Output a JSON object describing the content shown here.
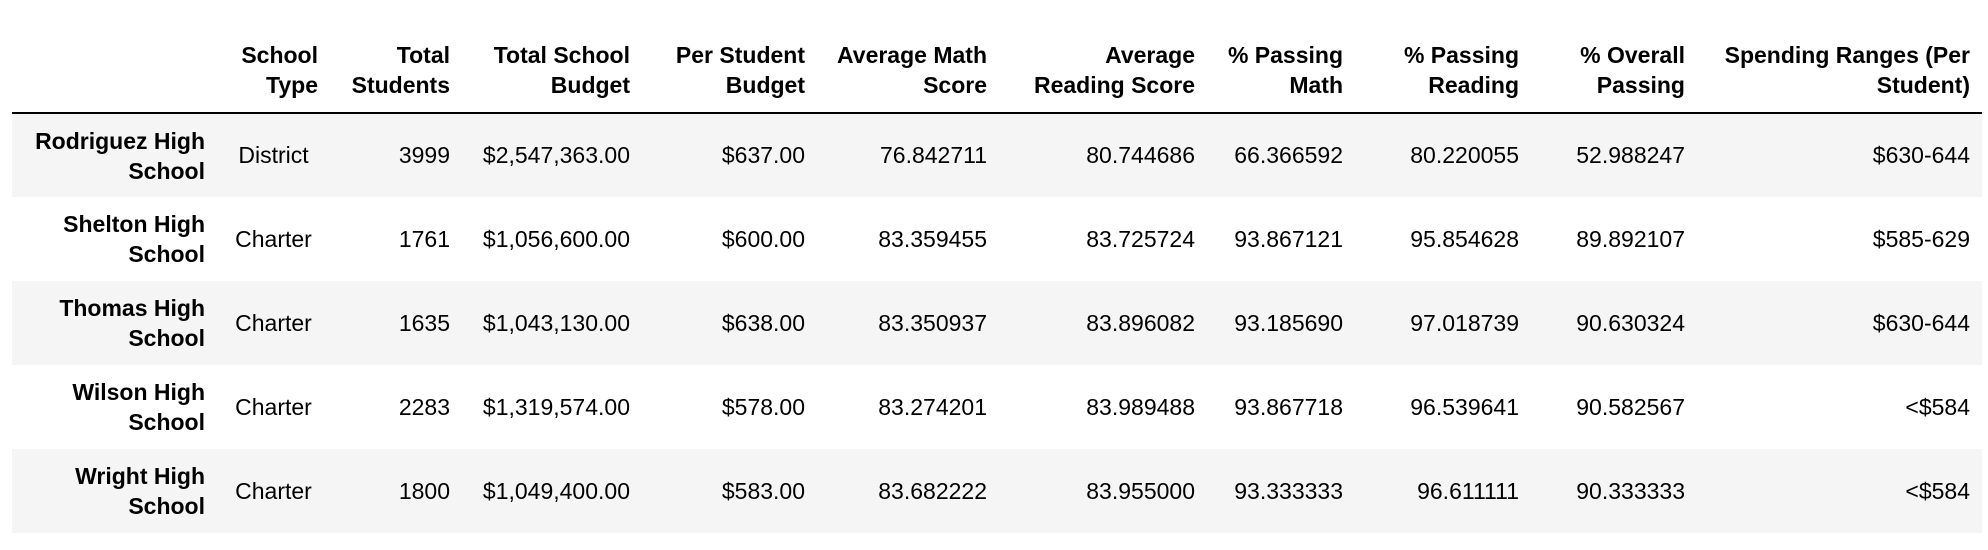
{
  "table": {
    "headers": [
      "",
      "School Type",
      "Total Students",
      "Total School Budget",
      "Per Student Budget",
      "Average Math Score",
      "Average Reading Score",
      "% Passing Math",
      "% Passing Reading",
      "% Overall Passing",
      "Spending Ranges (Per Student)"
    ],
    "rows": [
      {
        "name": "Rodriguez High School",
        "type": "District",
        "students": "3999",
        "budget": "$2,547,363.00",
        "per_student": "$637.00",
        "math": "76.842711",
        "reading": "80.744686",
        "pass_math": "66.366592",
        "pass_reading": "80.220055",
        "overall": "52.988247",
        "range": "$630-644"
      },
      {
        "name": "Shelton High School",
        "type": "Charter",
        "students": "1761",
        "budget": "$1,056,600.00",
        "per_student": "$600.00",
        "math": "83.359455",
        "reading": "83.725724",
        "pass_math": "93.867121",
        "pass_reading": "95.854628",
        "overall": "89.892107",
        "range": "$585-629"
      },
      {
        "name": "Thomas High School",
        "type": "Charter",
        "students": "1635",
        "budget": "$1,043,130.00",
        "per_student": "$638.00",
        "math": "83.350937",
        "reading": "83.896082",
        "pass_math": "93.185690",
        "pass_reading": "97.018739",
        "overall": "90.630324",
        "range": "$630-644"
      },
      {
        "name": "Wilson High School",
        "type": "Charter",
        "students": "2283",
        "budget": "$1,319,574.00",
        "per_student": "$578.00",
        "math": "83.274201",
        "reading": "83.989488",
        "pass_math": "93.867718",
        "pass_reading": "96.539641",
        "overall": "90.582567",
        "range": "<$584"
      },
      {
        "name": "Wright High School",
        "type": "Charter",
        "students": "1800",
        "budget": "$1,049,400.00",
        "per_student": "$583.00",
        "math": "83.682222",
        "reading": "83.955000",
        "pass_math": "93.333333",
        "pass_reading": "96.611111",
        "overall": "90.333333",
        "range": "<$584"
      }
    ]
  }
}
